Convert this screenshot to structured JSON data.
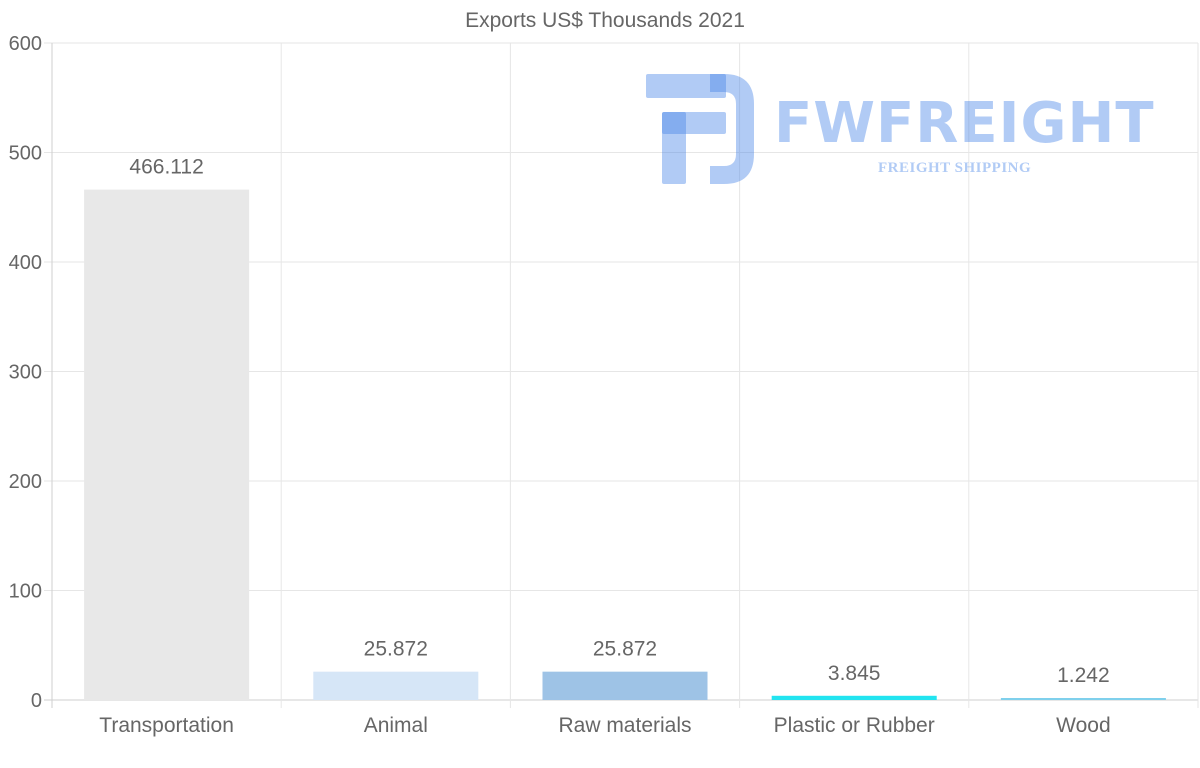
{
  "chart_data": {
    "type": "bar",
    "title": "Exports US$ Thousands 2021",
    "categories": [
      "Transportation",
      "Animal",
      "Raw materials",
      "Plastic or Rubber",
      "Wood"
    ],
    "values": [
      466.112,
      25.872,
      25.872,
      3.845,
      1.242
    ],
    "data_labels": [
      "466.112",
      "25.872",
      "25.872",
      "3.845",
      "1.242"
    ],
    "colors": [
      "#e8e8e8",
      "#d6e6f7",
      "#9ec3e6",
      "#22e4f0",
      "#7fd0ec"
    ],
    "ylim": [
      0,
      600
    ],
    "yticks": [
      0,
      100,
      200,
      300,
      400,
      500,
      600
    ],
    "ytick_labels": [
      "0",
      "100",
      "200",
      "300",
      "400",
      "500",
      "600"
    ],
    "xlabel": "",
    "ylabel": "",
    "grid": true,
    "legend": "none"
  },
  "watermark": {
    "brand": "FWFREIGHT",
    "tagline": "FREIGHT SHIPPING",
    "color": "#4682e6"
  }
}
